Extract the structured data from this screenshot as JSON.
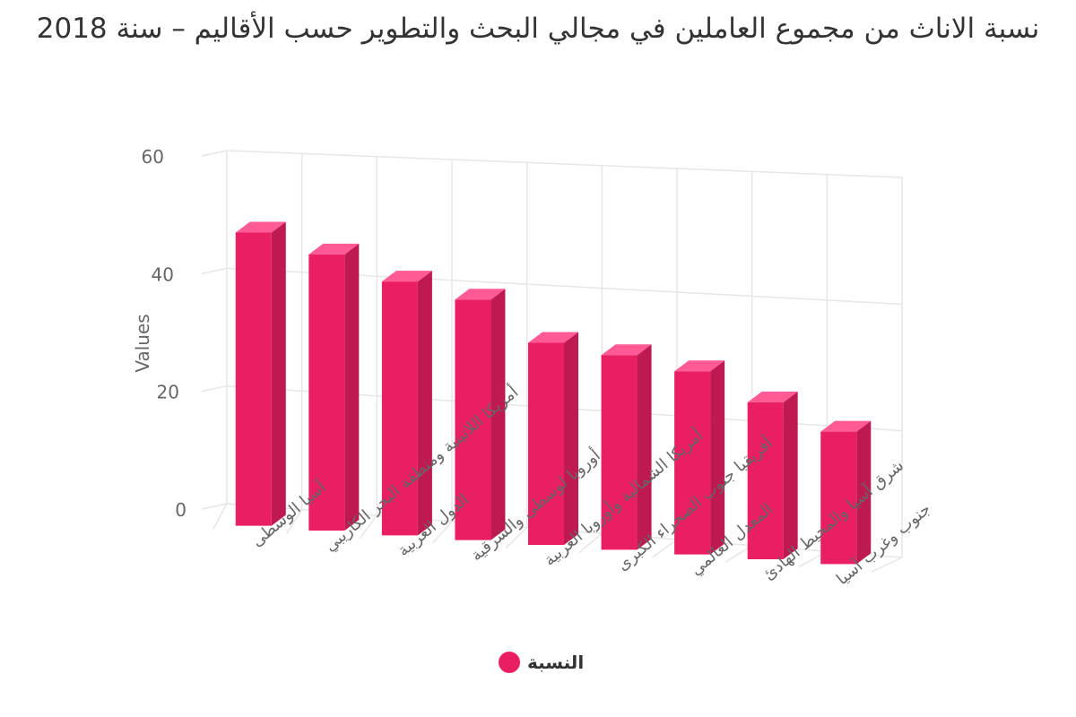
{
  "chart_data": {
    "type": "bar",
    "title": "نسبة الاناث من مجموع العاملين في مجالي البحث والتطوير حسب الأقاليم – سنة 2018",
    "ylabel": "Values",
    "xlabel": "",
    "ylim": [
      0,
      60
    ],
    "yticks": [
      0,
      20,
      40,
      60
    ],
    "grid": true,
    "legend_position": "bottom",
    "categories": [
      "آسيا الوسطى",
      "أمريكا اللاتينية ومنطقة البحر الكاريبي",
      "الدول العربية",
      "أوروبا لوسطى والشرقية",
      "أمريكا الشمالية وأوروبا الغربية",
      "أفريقيا جنوب الصحراء الكبرى",
      "المعدل العالمي",
      "شرق آسيا والمحيط الهادئ",
      "جنوب وغرب آسيا"
    ],
    "series": [
      {
        "name": "النسبة",
        "color": "#e91e63",
        "values": [
          48.5,
          45.4,
          41.5,
          39.1,
          32.7,
          31.3,
          29.3,
          25.0,
          21.0
        ]
      }
    ]
  }
}
